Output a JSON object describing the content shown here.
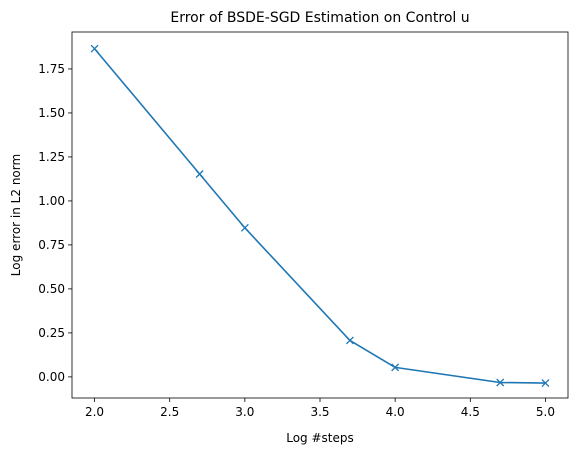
{
  "chart_data": {
    "type": "line",
    "title": "Error of BSDE-SGD Estimation on Control u",
    "xlabel": "Log #steps",
    "ylabel": "Log error in L2 norm",
    "xlim": [
      1.85,
      5.15
    ],
    "ylim": [
      -0.12,
      1.96
    ],
    "xticks": [
      "2.0",
      "2.5",
      "3.0",
      "3.5",
      "4.0",
      "4.5",
      "5.0"
    ],
    "yticks": [
      "0.00",
      "0.25",
      "0.50",
      "0.75",
      "1.00",
      "1.25",
      "1.50",
      "1.75"
    ],
    "grid": false,
    "series": [
      {
        "color": "#1f77b4",
        "marker": "x",
        "x": [
          2.0,
          2.699,
          3.0,
          3.699,
          4.0,
          4.699,
          5.0
        ],
        "y": [
          1.865,
          1.153,
          0.847,
          0.207,
          0.054,
          -0.032,
          -0.035
        ]
      }
    ]
  }
}
